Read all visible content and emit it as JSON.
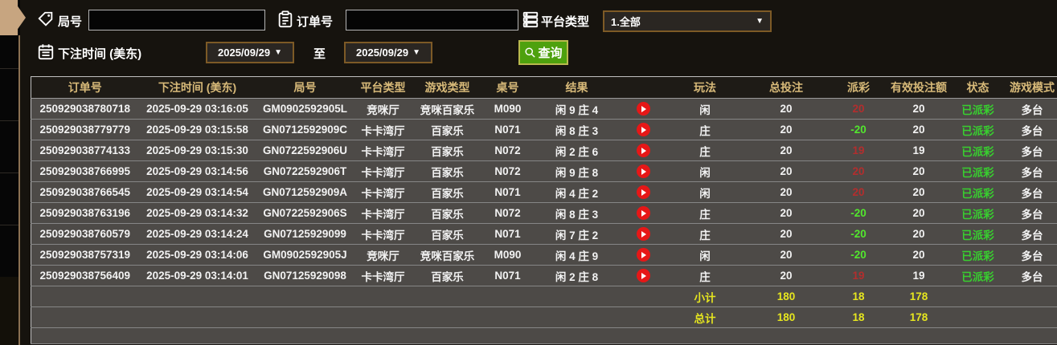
{
  "filters": {
    "round_label": "局号",
    "round_value": "",
    "order_label": "订单号",
    "order_value": "",
    "platform_label": "平台类型",
    "platform_value": "1.全部",
    "time_label": "下注时间 (美东)",
    "date_from": "2025/09/29",
    "to_label": "至",
    "date_to": "2025/09/29",
    "search_label": "查询"
  },
  "icons": {
    "dropdown_arrow": "▼",
    "round": "tag-icon",
    "order": "clipboard-icon",
    "platform": "server-icon",
    "time": "calendar-icon",
    "search": "magnifier-icon",
    "replay": "play-icon"
  },
  "colors": {
    "header_gold": "#d8ba79",
    "win_red": "#b22e2e",
    "loss_green": "#52e62e",
    "status_green": "#38cf2f",
    "summary_yellow": "#e6e61f",
    "button_green": "#4ea10e",
    "row_gray": "#4d4a47"
  },
  "table": {
    "headers": [
      "订单号",
      "下注时间 (美东)",
      "局号",
      "平台类型",
      "游戏类型",
      "桌号",
      "结果",
      "",
      "玩法",
      "总投注",
      "派彩",
      "有效投注额",
      "状态",
      "游戏模式"
    ],
    "rows": [
      {
        "order_id": "250929038780718",
        "bet_time": "2025-09-29 03:16:05",
        "round_id": "GM0902592905L",
        "platform": "竞咪厅",
        "game_type": "竞咪百家乐",
        "table_no": "M090",
        "result": "闲 9 庄 4",
        "play": "闲",
        "total_bet": "20",
        "payout": "20",
        "payout_color": "red",
        "valid_bet": "20",
        "status": "已派彩",
        "mode": "多台"
      },
      {
        "order_id": "250929038779779",
        "bet_time": "2025-09-29 03:15:58",
        "round_id": "GN0712592909C",
        "platform": "卡卡湾厅",
        "game_type": "百家乐",
        "table_no": "N071",
        "result": "闲 8 庄 3",
        "play": "庄",
        "total_bet": "20",
        "payout": "-20",
        "payout_color": "green",
        "valid_bet": "20",
        "status": "已派彩",
        "mode": "多台"
      },
      {
        "order_id": "250929038774133",
        "bet_time": "2025-09-29 03:15:30",
        "round_id": "GN0722592906U",
        "platform": "卡卡湾厅",
        "game_type": "百家乐",
        "table_no": "N072",
        "result": "闲 2 庄 6",
        "play": "庄",
        "total_bet": "20",
        "payout": "19",
        "payout_color": "red",
        "valid_bet": "19",
        "status": "已派彩",
        "mode": "多台"
      },
      {
        "order_id": "250929038766995",
        "bet_time": "2025-09-29 03:14:56",
        "round_id": "GN0722592906T",
        "platform": "卡卡湾厅",
        "game_type": "百家乐",
        "table_no": "N072",
        "result": "闲 9 庄 8",
        "play": "闲",
        "total_bet": "20",
        "payout": "20",
        "payout_color": "red",
        "valid_bet": "20",
        "status": "已派彩",
        "mode": "多台"
      },
      {
        "order_id": "250929038766545",
        "bet_time": "2025-09-29 03:14:54",
        "round_id": "GN0712592909A",
        "platform": "卡卡湾厅",
        "game_type": "百家乐",
        "table_no": "N071",
        "result": "闲 4 庄 2",
        "play": "闲",
        "total_bet": "20",
        "payout": "20",
        "payout_color": "red",
        "valid_bet": "20",
        "status": "已派彩",
        "mode": "多台"
      },
      {
        "order_id": "250929038763196",
        "bet_time": "2025-09-29 03:14:32",
        "round_id": "GN0722592906S",
        "platform": "卡卡湾厅",
        "game_type": "百家乐",
        "table_no": "N072",
        "result": "闲 8 庄 3",
        "play": "庄",
        "total_bet": "20",
        "payout": "-20",
        "payout_color": "green",
        "valid_bet": "20",
        "status": "已派彩",
        "mode": "多台"
      },
      {
        "order_id": "250929038760579",
        "bet_time": "2025-09-29 03:14:24",
        "round_id": "GN07125929099",
        "platform": "卡卡湾厅",
        "game_type": "百家乐",
        "table_no": "N071",
        "result": "闲 7 庄 2",
        "play": "庄",
        "total_bet": "20",
        "payout": "-20",
        "payout_color": "green",
        "valid_bet": "20",
        "status": "已派彩",
        "mode": "多台"
      },
      {
        "order_id": "250929038757319",
        "bet_time": "2025-09-29 03:14:06",
        "round_id": "GM0902592905J",
        "platform": "竞咪厅",
        "game_type": "竞咪百家乐",
        "table_no": "M090",
        "result": "闲 4 庄 9",
        "play": "闲",
        "total_bet": "20",
        "payout": "-20",
        "payout_color": "green",
        "valid_bet": "20",
        "status": "已派彩",
        "mode": "多台"
      },
      {
        "order_id": "250929038756409",
        "bet_time": "2025-09-29 03:14:01",
        "round_id": "GN07125929098",
        "platform": "卡卡湾厅",
        "game_type": "百家乐",
        "table_no": "N071",
        "result": "闲 2 庄 8",
        "play": "庄",
        "total_bet": "20",
        "payout": "19",
        "payout_color": "red",
        "valid_bet": "19",
        "status": "已派彩",
        "mode": "多台"
      }
    ],
    "subtotal": {
      "label": "小计",
      "total_bet": "180",
      "payout": "18",
      "valid_bet": "178"
    },
    "total": {
      "label": "总计",
      "total_bet": "180",
      "payout": "18",
      "valid_bet": "178"
    }
  }
}
